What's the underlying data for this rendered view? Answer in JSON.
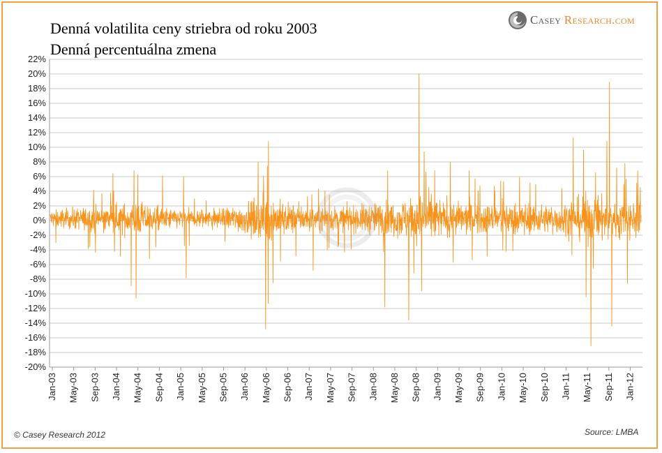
{
  "header": {
    "title_line1": "Denná volatilita ceny striebra od roku 2003",
    "title_line2": "Denná percentuálna zmena"
  },
  "logo": {
    "part1": "Casey ",
    "part2": "Research.com"
  },
  "footer": {
    "copyright": "© Casey Research 2012",
    "source": "Source: LMBA"
  },
  "colors": {
    "series": "#f7941d",
    "grid": "#c8c8c8",
    "frame": "#f0a040",
    "axis": "#999999"
  },
  "chart_data": {
    "type": "line",
    "title": "Denná volatilita ceny striebra od roku 2003",
    "subtitle": "Denná percentuálna zmena",
    "xlabel": "",
    "ylabel": "",
    "ylim": [
      -20,
      22
    ],
    "y_ticks": [
      "22%",
      "20%",
      "18%",
      "16%",
      "14%",
      "12%",
      "10%",
      "8%",
      "6%",
      "4%",
      "2%",
      "0%",
      "-2%",
      "-4%",
      "-6%",
      "-8%",
      "-10%",
      "-12%",
      "-14%",
      "-16%",
      "-18%",
      "-20%"
    ],
    "x_ticks": [
      "Jan-03",
      "May-03",
      "Sep-03",
      "Jan-04",
      "May-04",
      "Sep-04",
      "Jan-05",
      "May-05",
      "Sep-05",
      "Jan-06",
      "May-06",
      "Sep-06",
      "Jan-07",
      "May-07",
      "Sep-07",
      "Jan-08",
      "May-08",
      "Sep-08",
      "Jan-09",
      "May-09",
      "Sep-09",
      "Jan-10",
      "May-10",
      "Sep-10",
      "Jan-11",
      "May-11",
      "Sep-11",
      "Jan-12"
    ],
    "grid": true,
    "legend": "none",
    "series": [
      {
        "typical_band_by_period": [
          {
            "x": "Jan-03",
            "band": 2.0
          },
          {
            "x": "Jan-04",
            "band": 3.2
          },
          {
            "x": "May-04",
            "band": 4.0
          },
          {
            "x": "Sep-04",
            "band": 2.6
          },
          {
            "x": "Jan-05",
            "band": 2.2
          },
          {
            "x": "Sep-05",
            "band": 2.4
          },
          {
            "x": "Jan-06",
            "band": 3.4
          },
          {
            "x": "May-06",
            "band": 5.0
          },
          {
            "x": "Sep-06",
            "band": 3.6
          },
          {
            "x": "Jan-07",
            "band": 2.8
          },
          {
            "x": "Sep-07",
            "band": 2.8
          },
          {
            "x": "Jan-08",
            "band": 3.6
          },
          {
            "x": "May-08",
            "band": 3.8
          },
          {
            "x": "Sep-08",
            "band": 5.5
          },
          {
            "x": "Jan-09",
            "band": 4.5
          },
          {
            "x": "May-09",
            "band": 3.8
          },
          {
            "x": "Sep-09",
            "band": 3.6
          },
          {
            "x": "Jan-10",
            "band": 3.4
          },
          {
            "x": "May-10",
            "band": 3.8
          },
          {
            "x": "Sep-10",
            "band": 3.2
          },
          {
            "x": "Jan-11",
            "band": 3.8
          },
          {
            "x": "May-11",
            "band": 5.5
          },
          {
            "x": "Sep-11",
            "band": 5.0
          },
          {
            "x": "Jan-12",
            "band": 4.2
          }
        ],
        "notable_spikes": [
          {
            "x": "Jan-04",
            "y": 6.4
          },
          {
            "x": "Apr-04",
            "y": 6.8
          },
          {
            "x": "Apr-04",
            "y": -8.9
          },
          {
            "x": "Apr-04",
            "y": -10.6
          },
          {
            "x": "Jul-04",
            "y": -5.2
          },
          {
            "x": "Oct-04",
            "y": 6.1
          },
          {
            "x": "Jan-05",
            "y": 6.0
          },
          {
            "x": "Feb-05",
            "y": -7.8
          },
          {
            "x": "Apr-06",
            "y": 8.0
          },
          {
            "x": "May-06",
            "y": 10.8
          },
          {
            "x": "May-06",
            "y": -14.8
          },
          {
            "x": "Jun-06",
            "y": -11.3
          },
          {
            "x": "Jun-06",
            "y": -8.5
          },
          {
            "x": "Feb-07",
            "y": -6.8
          },
          {
            "x": "Mar-08",
            "y": 6.8
          },
          {
            "x": "Mar-08",
            "y": -11.8
          },
          {
            "x": "Aug-08",
            "y": -13.6
          },
          {
            "x": "Sep-08",
            "y": 20.0
          },
          {
            "x": "Oct-08",
            "y": -9.6
          },
          {
            "x": "Nov-08",
            "y": 9.4
          },
          {
            "x": "Mar-09",
            "y": 8.0
          },
          {
            "x": "Jul-09",
            "y": 6.8
          },
          {
            "x": "Mar-11",
            "y": 11.3
          },
          {
            "x": "Apr-11",
            "y": 9.6
          },
          {
            "x": "May-11",
            "y": -10.4
          },
          {
            "x": "May-11",
            "y": -17.1
          },
          {
            "x": "Sep-11",
            "y": 18.9
          },
          {
            "x": "Sep-11",
            "y": 10.8
          },
          {
            "x": "Sep-11",
            "y": -14.4
          },
          {
            "x": "Dec-11",
            "y": 7.8
          },
          {
            "x": "Jan-12",
            "y": -8.6
          },
          {
            "x": "Feb-12",
            "y": 6.8
          },
          {
            "x": "Mar-12",
            "y": 4.5
          }
        ]
      }
    ]
  }
}
